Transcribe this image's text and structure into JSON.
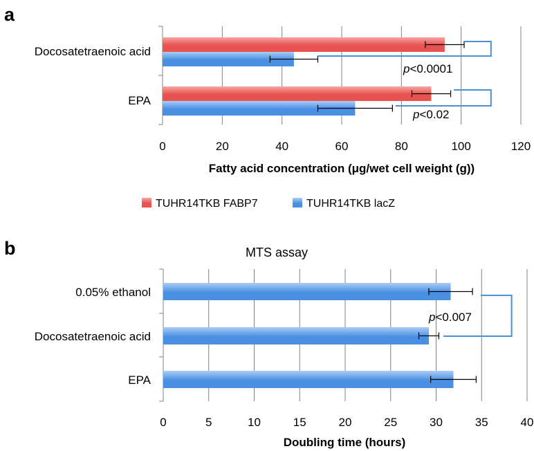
{
  "colors": {
    "fabp7_top": "#f7a3a3",
    "fabp7_mid": "#e8534f",
    "lacz_top": "#a9cdf6",
    "lacz_mid": "#4a90e2",
    "grid": "#808080",
    "bracket": "#4a90d9",
    "error": "#000000"
  },
  "panels": {
    "a_letter": "a",
    "b_letter": "b"
  },
  "chart_data": [
    {
      "type": "bar",
      "orientation": "horizontal",
      "panel": "a",
      "title": "",
      "categories": [
        "Docosatetraenoic acid",
        "EPA"
      ],
      "series": [
        {
          "name": "TUHR14TKB FABP7",
          "values": [
            94.5,
            90
          ],
          "errors": [
            6.5,
            6.5
          ]
        },
        {
          "name": "TUHR14TKB lacZ",
          "values": [
            44,
            64.5
          ],
          "errors": [
            8,
            12.5
          ]
        }
      ],
      "xlabel": "Fatty acid concentration (μg/wet cell weight (g))",
      "xlim": [
        0,
        120
      ],
      "xticks": [
        0,
        20,
        40,
        60,
        80,
        100,
        120
      ],
      "grid": "vertical",
      "legend": "bottom",
      "annotations": [
        {
          "category": "Docosatetraenoic acid",
          "prefix": "p",
          "text": "<0.0001"
        },
        {
          "category": "EPA",
          "prefix": "p",
          "text": "<0.02"
        }
      ]
    },
    {
      "type": "bar",
      "orientation": "horizontal",
      "panel": "b",
      "title": "MTS assay",
      "categories": [
        "0.05% ethanol",
        "Docosatetraenoic acid",
        "EPA"
      ],
      "series": [
        {
          "name": "",
          "values": [
            31.6,
            29.2,
            31.9
          ],
          "errors": [
            2.4,
            1.1,
            2.5
          ]
        }
      ],
      "xlabel": "Doubling time (hours)",
      "xlim": [
        0,
        40
      ],
      "xticks": [
        0,
        5,
        10,
        15,
        20,
        25,
        30,
        35,
        40
      ],
      "grid": "vertical",
      "annotations": [
        {
          "between": [
            "0.05% ethanol",
            "Docosatetraenoic acid"
          ],
          "prefix": "p",
          "text": "<0.007"
        }
      ]
    }
  ]
}
